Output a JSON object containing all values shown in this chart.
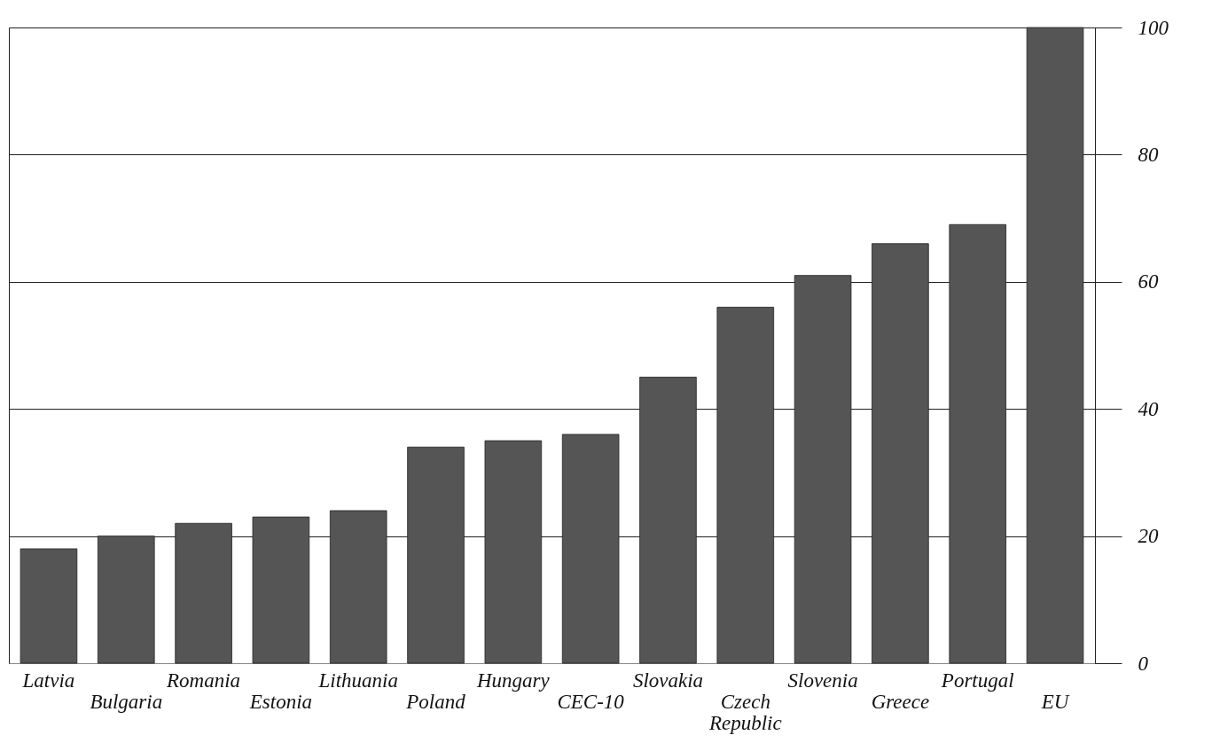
{
  "chart_data": {
    "type": "bar",
    "categories": [
      "Latvia",
      "Bulgaria",
      "Romania",
      "Estonia",
      "Lithuania",
      "Poland",
      "Hungary",
      "CEC-10",
      "Slovakia",
      "Czech Republic",
      "Slovenia",
      "Greece",
      "Portugal",
      "EU"
    ],
    "values": [
      18,
      20,
      22,
      23,
      24,
      34,
      35,
      36,
      45,
      56,
      61,
      66,
      69,
      100
    ],
    "color": "#555555",
    "ylim": [
      0,
      100
    ],
    "yticks": [
      0,
      20,
      40,
      60,
      80,
      100
    ],
    "grid": "y"
  }
}
